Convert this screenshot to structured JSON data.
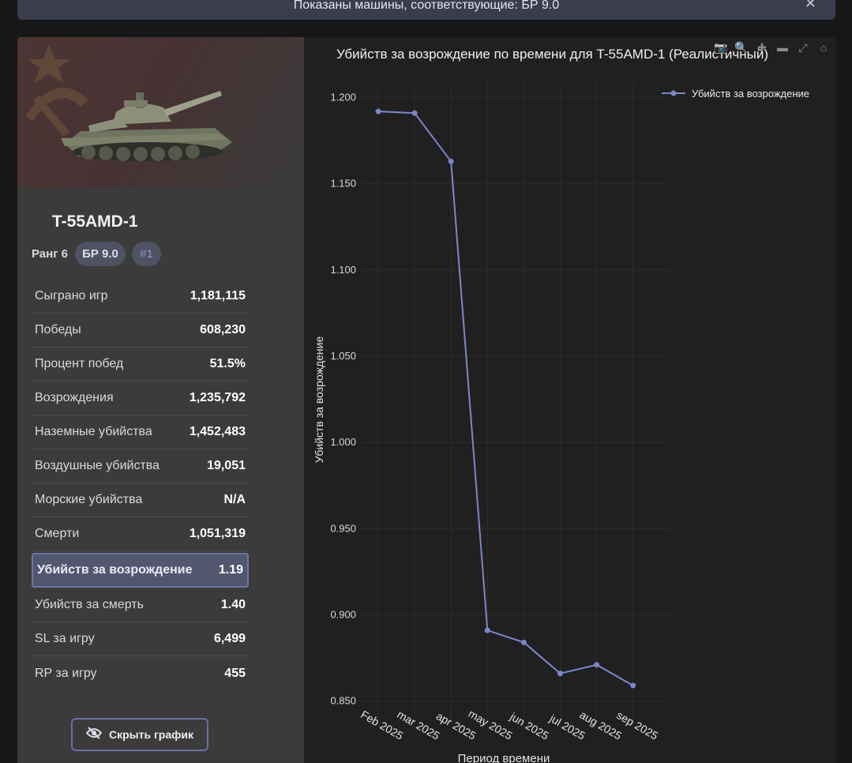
{
  "banner": {
    "text": "Показаны машины, соответствующие: БР 9.0",
    "close_label": "✕"
  },
  "vehicle": {
    "name": "T-55AMD-1",
    "rank": "Ранг 6",
    "br": "БР 9.0",
    "position": "#1"
  },
  "stats": [
    {
      "label": "Сыграно игр",
      "value": "1,181,115"
    },
    {
      "label": "Победы",
      "value": "608,230"
    },
    {
      "label": "Процент побед",
      "value": "51.5%"
    },
    {
      "label": "Возрождения",
      "value": "1,235,792"
    },
    {
      "label": "Наземные убийства",
      "value": "1,452,483"
    },
    {
      "label": "Воздушные убийства",
      "value": "19,051"
    },
    {
      "label": "Морские убийства",
      "value": "N/A"
    },
    {
      "label": "Смерти",
      "value": "1,051,319"
    },
    {
      "label": "Убийств за возрождение",
      "value": "1.19"
    },
    {
      "label": "Убийств за смерть",
      "value": "1.40"
    },
    {
      "label": "SL за игру",
      "value": "6,499"
    },
    {
      "label": "RP за игру",
      "value": "455"
    }
  ],
  "hide_chart_label": "Скрыть график",
  "modebar": [
    "camera-icon",
    "zoom-icon",
    "zoom-in-icon",
    "zoom-out-icon",
    "autoscale-icon",
    "home-icon"
  ],
  "chart_data": {
    "type": "line",
    "title": "Убийств за возрождение по времени для T-55AMD-1 (Реалистичный)",
    "xlabel": "Период времени",
    "ylabel": "Убийств за возрождение",
    "categories": [
      "Feb 2025",
      "mar 2025",
      "apr 2025",
      "may 2025",
      "jun 2025",
      "jul 2025",
      "aug 2025",
      "sep 2025"
    ],
    "series": [
      {
        "name": "Убийств за возрождение",
        "values": [
          1.192,
          1.191,
          1.163,
          0.891,
          0.884,
          0.866,
          0.871,
          0.859
        ]
      }
    ],
    "yticks": [
      "1.200",
      "1.150",
      "1.100",
      "1.050",
      "1.000",
      "0.950",
      "0.900",
      "0.850"
    ],
    "ylim": [
      0.8365,
      1.2085
    ],
    "line_color": "#7c87c8",
    "legend_position": "top-right"
  }
}
